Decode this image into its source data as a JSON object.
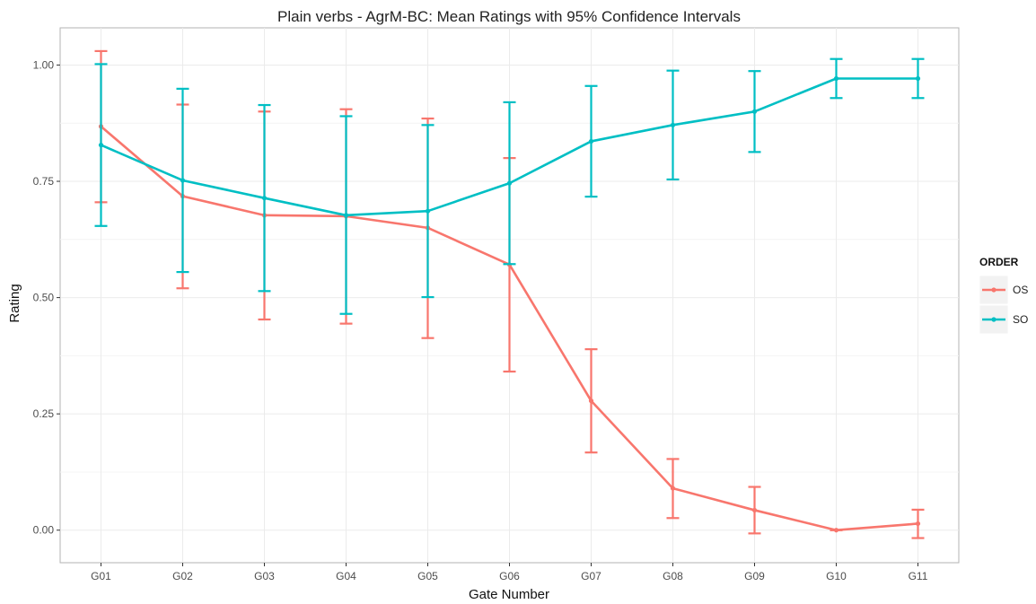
{
  "chart_data": {
    "type": "line",
    "title": "Plain verbs - AgrM-BC: Mean Ratings with 95% Confidence Intervals",
    "xlabel": "Gate Number",
    "ylabel": "Rating",
    "categories": [
      "G01",
      "G02",
      "G03",
      "G04",
      "G05",
      "G06",
      "G07",
      "G08",
      "G09",
      "G10",
      "G11"
    ],
    "ylim": [
      -0.07,
      1.08
    ],
    "yticks": [
      0.0,
      0.25,
      0.5,
      0.75,
      1.0
    ],
    "ytick_labels": [
      "0.00",
      "0.25",
      "0.50",
      "0.75",
      "1.00"
    ],
    "grid": true,
    "legend": {
      "title": "ORDER",
      "position": "right"
    },
    "series": [
      {
        "name": "OS",
        "color": "#F8766D",
        "values": [
          0.868,
          0.718,
          0.677,
          0.675,
          0.65,
          0.571,
          0.278,
          0.09,
          0.043,
          0.0,
          0.014
        ],
        "lower": [
          0.705,
          0.52,
          0.453,
          0.444,
          0.413,
          0.341,
          0.167,
          0.026,
          -0.007,
          0.0,
          -0.017
        ],
        "upper": [
          1.03,
          0.915,
          0.9,
          0.905,
          0.885,
          0.8,
          0.389,
          0.153,
          0.093,
          0.0,
          0.044
        ]
      },
      {
        "name": "SO",
        "color": "#00BFC4",
        "values": [
          0.828,
          0.752,
          0.714,
          0.677,
          0.686,
          0.746,
          0.836,
          0.871,
          0.9,
          0.971,
          0.971
        ],
        "lower": [
          0.654,
          0.555,
          0.514,
          0.465,
          0.501,
          0.572,
          0.717,
          0.754,
          0.813,
          0.929,
          0.929
        ],
        "upper": [
          1.002,
          0.949,
          0.914,
          0.89,
          0.871,
          0.92,
          0.955,
          0.988,
          0.987,
          1.013,
          1.013
        ]
      }
    ]
  }
}
